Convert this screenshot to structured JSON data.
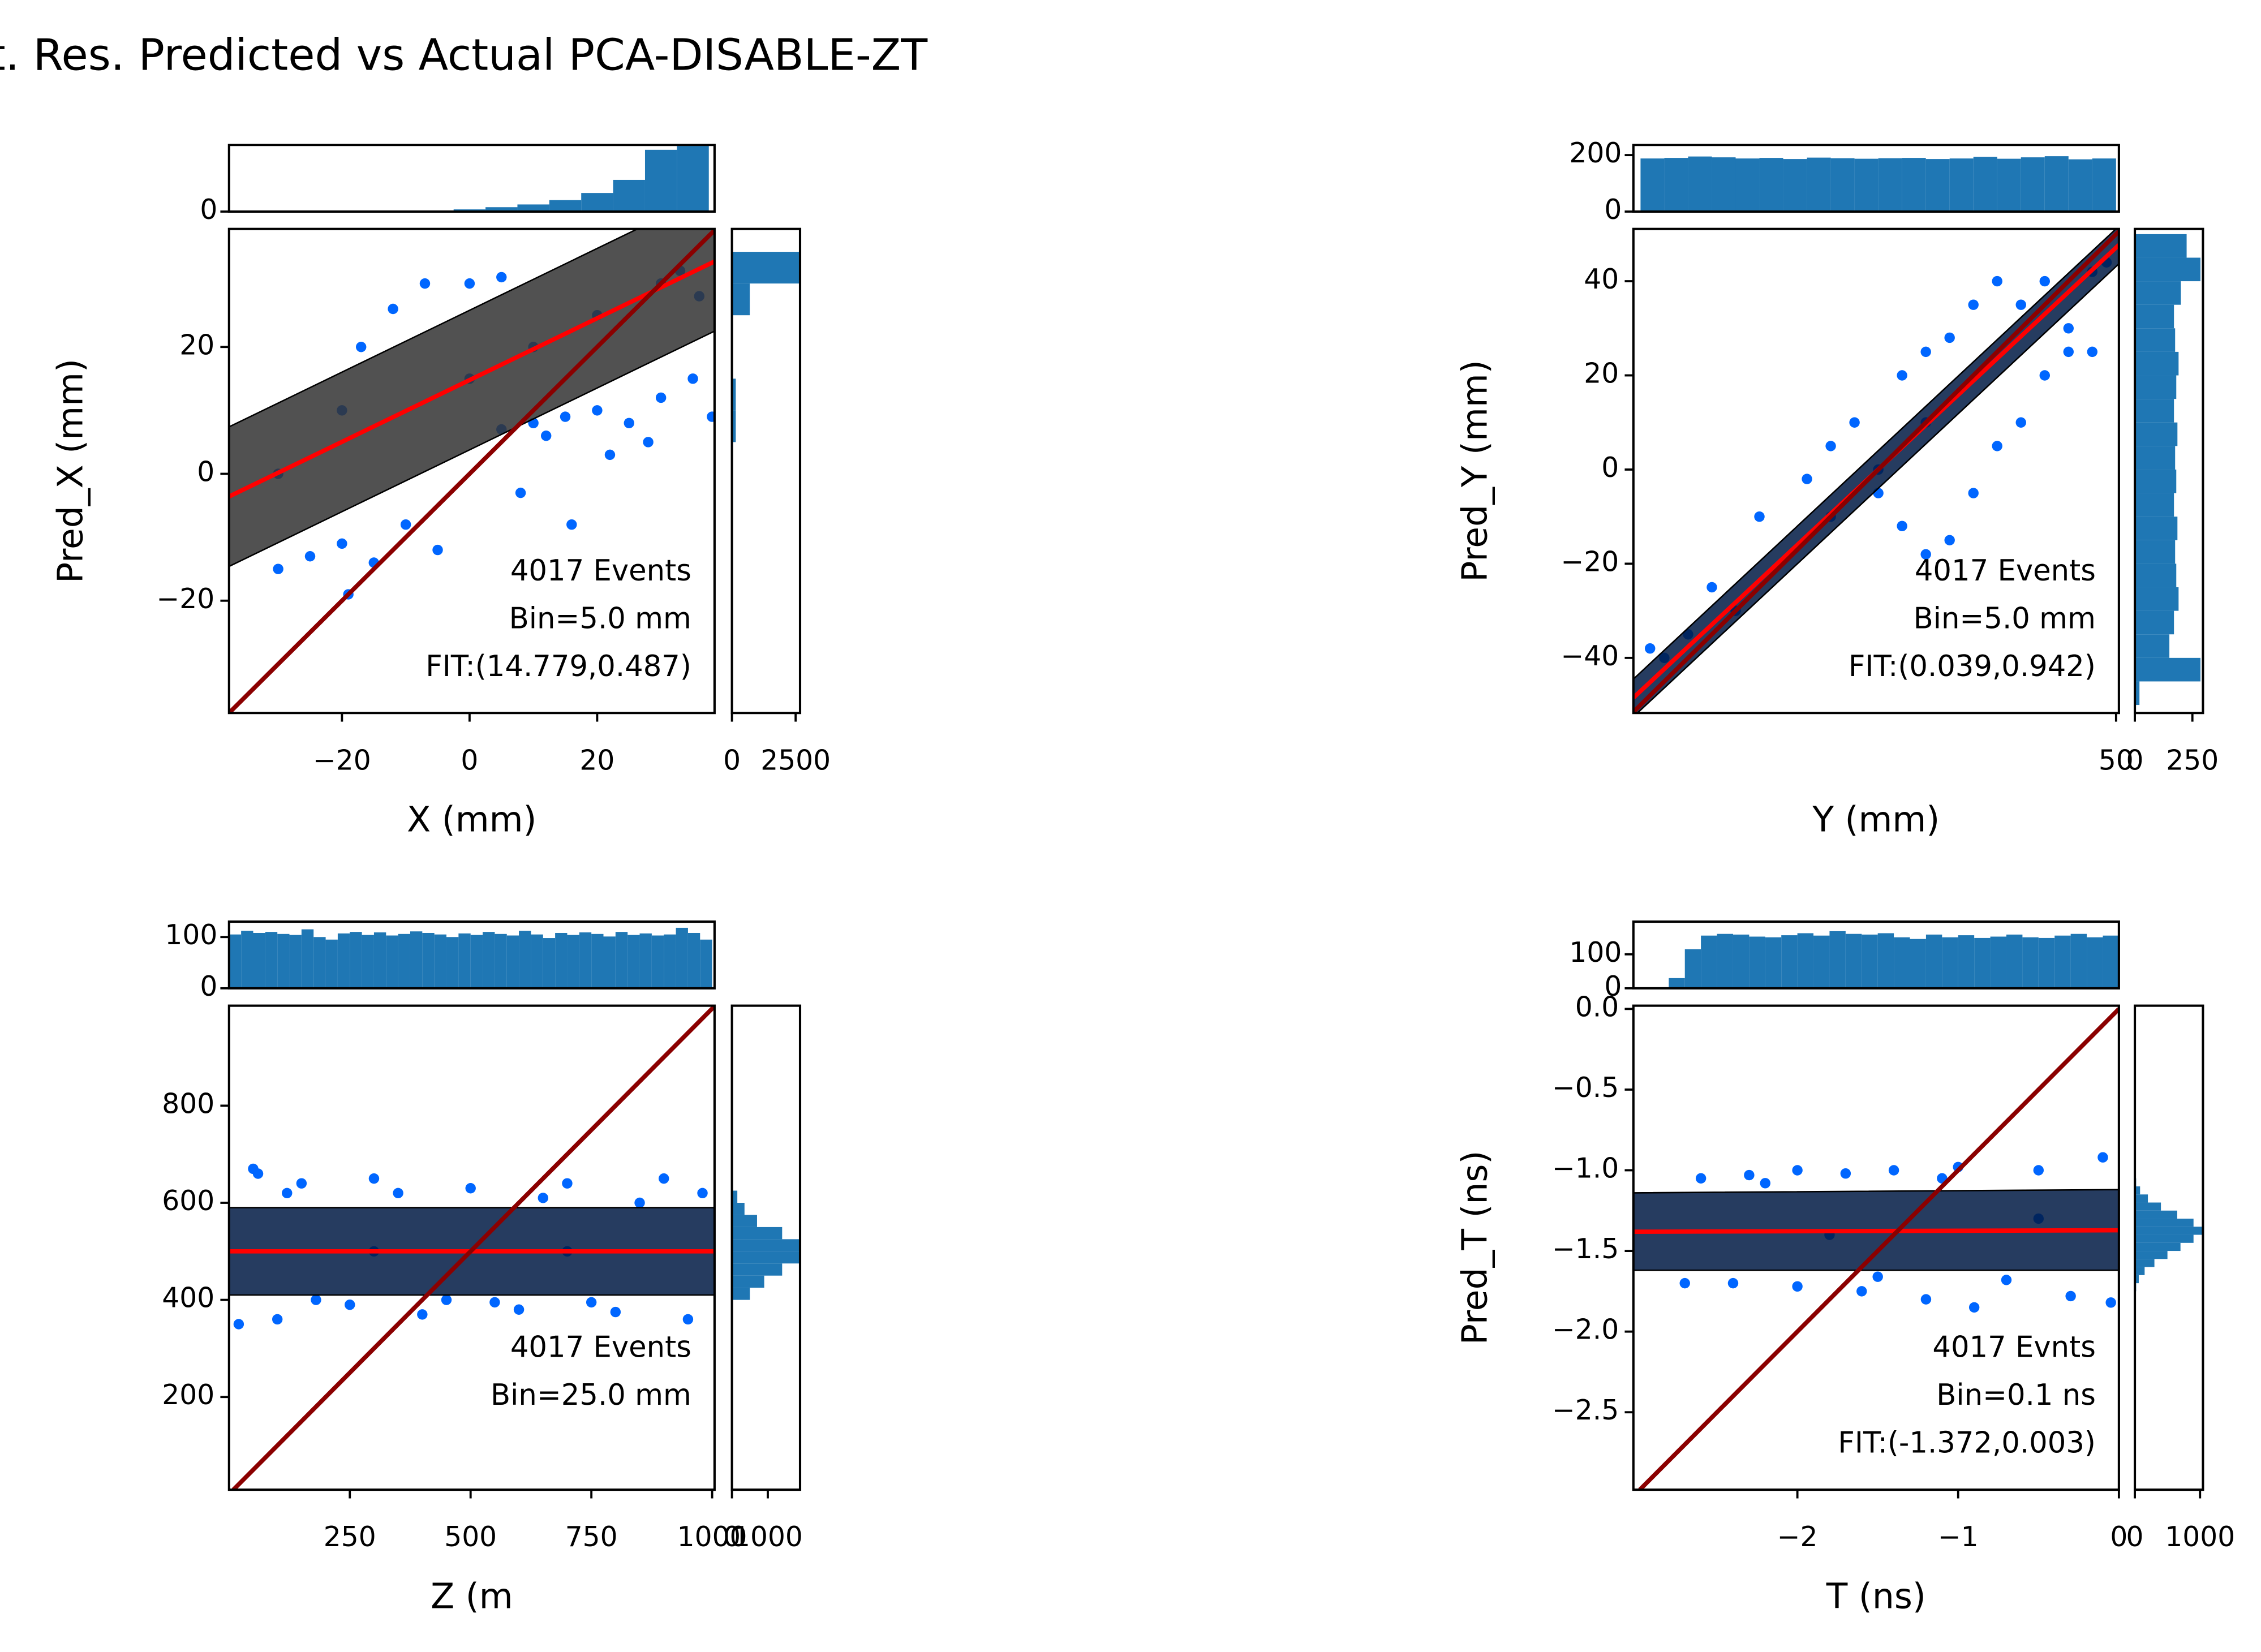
{
  "title": "t. Res. Predicted vs Actual PCA-DISABLE-ZT",
  "chart_data": [
    {
      "type": "scatter",
      "xlabel": "X (mm)",
      "ylabel": "Pred_X (mm)",
      "color": "#0066ff",
      "band_color": "#333333",
      "fit_color": "#ff0000",
      "diagonal_color": "#8b0000",
      "xlim": [
        -37.7,
        38.4
      ],
      "ylim": [
        -37.7,
        38.6
      ],
      "xticks": [
        {
          "value": -20,
          "label": "−20"
        },
        0,
        20
      ],
      "yticks": [
        {
          "value": -20,
          "label": "−20"
        },
        0,
        20
      ],
      "x": [
        10,
        15,
        20,
        25,
        30,
        35,
        38,
        28,
        22,
        12,
        5,
        -5,
        -10,
        -20,
        -25,
        -30,
        -15,
        8,
        16,
        -19,
        -7,
        0,
        5,
        -12,
        -17,
        -20,
        0,
        20,
        30,
        10,
        -30,
        33,
        36
      ],
      "values": [
        8,
        9,
        10,
        8,
        12,
        15,
        9,
        5,
        3,
        6,
        7,
        -12,
        -8,
        -11,
        -13,
        -15,
        -14,
        -3,
        -8,
        -19,
        30,
        30,
        31,
        26,
        20,
        10,
        15,
        25,
        30,
        20,
        0,
        32,
        28
      ],
      "band": {
        "x": [
          -37.7,
          38.4
        ],
        "lower": [
          -14.6,
          22.5
        ],
        "upper": [
          7.4,
          44.5
        ]
      },
      "fit_line": {
        "x": [
          -37.7,
          38.4
        ],
        "values": [
          -3.58,
          33.48
        ]
      },
      "annotations": [
        "4017 Events",
        "Bin=5.0 mm",
        "FIT:(14.779,0.487)"
      ],
      "top_hist": {
        "bins": [
          -37.5,
          -32.5,
          -27.5,
          -22.5,
          -17.5,
          -12.5,
          -7.5,
          -2.5,
          2.5,
          7.5,
          12.5,
          17.5,
          22.5,
          27.5,
          32.5,
          37.5
        ],
        "counts": [
          0,
          0,
          0,
          0,
          0,
          0,
          0.2,
          0.4,
          0.8,
          1.3,
          2.1,
          3.4,
          5.8,
          11.3,
          12
        ],
        "ylim": [
          0,
          12.2
        ],
        "yticks": [
          0
        ]
      },
      "right_hist": {
        "bins": [
          0,
          5,
          10,
          15,
          20,
          25,
          30,
          35
        ],
        "counts": [
          20,
          150,
          150,
          10,
          5,
          700,
          2650
        ],
        "xlim": [
          0,
          2674
        ],
        "xticks": [
          0,
          2500
        ]
      }
    },
    {
      "type": "scatter",
      "xlabel": "Y (mm)",
      "ylabel": "Pred_Y (mm)",
      "color": "#0066ff",
      "band_color": "#001a44",
      "fit_color": "#ff0000",
      "diagonal_color": "#8b0000",
      "xlim": [
        -51.5,
        50.6
      ],
      "ylim": [
        -51.7,
        51.1
      ],
      "xticks": [
        50
      ],
      "yticks": [
        {
          "value": -40,
          "label": "−40"
        },
        {
          "value": -20,
          "label": "−20"
        },
        0,
        20,
        40
      ],
      "x": [
        -40,
        -35,
        -25,
        -15,
        -10,
        -5,
        5,
        10,
        15,
        20,
        25,
        30,
        35,
        40,
        45,
        0,
        5,
        10,
        15,
        20,
        25,
        30,
        35,
        40,
        -45,
        -30,
        -10,
        0,
        10,
        45,
        -48,
        48
      ],
      "values": [
        -35,
        -25,
        -10,
        -2,
        5,
        10,
        20,
        25,
        28,
        35,
        40,
        35,
        40,
        25,
        25,
        -5,
        -12,
        -18,
        -15,
        -5,
        5,
        10,
        20,
        30,
        -40,
        -30,
        -10,
        0,
        10,
        42,
        -38,
        44
      ],
      "band": {
        "x": [
          -51.5,
          50.6
        ],
        "lower": [
          -52.5,
          43.7
        ],
        "upper": [
          -44.5,
          51.7
        ]
      },
      "fit_line": {
        "x": [
          -51.5,
          50.6
        ],
        "values": [
          -48.47,
          47.7
        ]
      },
      "annotations": [
        "4017 Events",
        "Bin=5.0 mm",
        "FIT:(0.039,0.942)"
      ],
      "top_hist": {
        "bins": [
          -50,
          -45,
          -40,
          -35,
          -30,
          -25,
          -20,
          -15,
          -10,
          -5,
          0,
          5,
          10,
          15,
          20,
          25,
          30,
          35,
          40,
          45,
          50
        ],
        "counts": [
          188,
          190,
          195,
          192,
          188,
          190,
          186,
          191,
          189,
          187,
          189,
          190,
          186,
          188,
          194,
          187,
          192,
          196,
          185,
          188
        ],
        "ylim": [
          0,
          236
        ],
        "yticks": [
          0,
          200
        ]
      },
      "right_hist": {
        "bins": [
          -50,
          -45,
          -40,
          -35,
          -30,
          -25,
          -20,
          -15,
          -10,
          -5,
          0,
          5,
          10,
          15,
          20,
          25,
          30,
          35,
          40,
          45,
          50
        ],
        "counts": [
          20,
          285,
          150,
          170,
          190,
          180,
          175,
          185,
          170,
          180,
          175,
          185,
          170,
          180,
          190,
          175,
          170,
          200,
          285,
          225
        ],
        "xlim": [
          0,
          296
        ],
        "xticks": [
          0,
          250
        ]
      }
    },
    {
      "type": "scatter",
      "xlabel": "Z (m",
      "color": "#0066ff",
      "band_color": "#001a44",
      "fit_color": "#ff0000",
      "diagonal_color": "#8b0000",
      "xlim": [
        0,
        1005
      ],
      "ylim": [
        9,
        1006
      ],
      "xticks": [
        250,
        500,
        750,
        1000
      ],
      "yticks": [
        200,
        400,
        600,
        800
      ],
      "x": [
        50,
        60,
        150,
        300,
        500,
        700,
        900,
        100,
        250,
        400,
        600,
        800,
        950,
        20,
        350,
        650,
        850,
        180,
        450,
        750,
        980,
        120,
        550,
        300,
        700
      ],
      "values": [
        670,
        660,
        640,
        650,
        630,
        640,
        650,
        360,
        390,
        370,
        380,
        375,
        360,
        350,
        620,
        610,
        600,
        400,
        400,
        395,
        620,
        620,
        395,
        500,
        500
      ],
      "band": {
        "x": [
          0,
          1005
        ],
        "lower": [
          410,
          410
        ],
        "upper": [
          590,
          590
        ]
      },
      "fit_line": {
        "x": [
          0,
          1005
        ],
        "values": [
          500,
          500
        ]
      },
      "annotations": [
        "4017 Events",
        "Bin=25.0 mm"
      ],
      "top_hist": {
        "bins": [
          0,
          25,
          50,
          75,
          100,
          125,
          150,
          175,
          200,
          225,
          250,
          275,
          300,
          325,
          350,
          375,
          400,
          425,
          450,
          475,
          500,
          525,
          550,
          575,
          600,
          625,
          650,
          675,
          700,
          725,
          750,
          775,
          800,
          825,
          850,
          875,
          900,
          925,
          950,
          975,
          1000
        ],
        "counts": [
          105,
          112,
          108,
          110,
          106,
          104,
          115,
          100,
          95,
          107,
          110,
          104,
          109,
          103,
          106,
          111,
          108,
          105,
          100,
          107,
          104,
          110,
          106,
          103,
          112,
          105,
          98,
          108,
          104,
          109,
          106,
          101,
          110,
          104,
          107,
          103,
          105,
          118,
          108,
          95
        ],
        "ylim": [
          0,
          130
        ],
        "yticks": [
          0,
          100
        ]
      },
      "right_hist": {
        "bins": [
          400,
          425,
          450,
          475,
          500,
          525,
          550,
          575,
          600,
          625
        ],
        "counts": [
          500,
          900,
          1400,
          1900,
          1900,
          1400,
          700,
          350,
          150
        ],
        "xlim": [
          0,
          1900
        ],
        "xticks": [
          0,
          1000
        ]
      }
    },
    {
      "type": "scatter",
      "xlabel": "T (ns)",
      "ylabel": "Pred_T (ns)",
      "color": "#0066ff",
      "band_color": "#001a44",
      "fit_color": "#ff0000",
      "diagonal_color": "#8b0000",
      "xlim": [
        -3.02,
        0
      ],
      "ylim": [
        -2.98,
        0.02
      ],
      "xticks": [
        {
          "value": -2,
          "label": "−2"
        },
        {
          "value": -1,
          "label": "−1"
        },
        0
      ],
      "yticks": [
        {
          "value": 0,
          "label": "0.0"
        },
        {
          "value": -0.5,
          "label": "−0.5"
        },
        {
          "value": -1,
          "label": "−1.0"
        },
        {
          "value": -1.5,
          "label": "−1.5"
        },
        {
          "value": -2,
          "label": "−2.0"
        },
        {
          "value": -2.5,
          "label": "−2.5"
        }
      ],
      "x": [
        -2.6,
        -2.3,
        -2.0,
        -1.7,
        -1.4,
        -1.0,
        -0.5,
        -0.1,
        -2.7,
        -2.4,
        -2.0,
        -1.6,
        -1.2,
        -0.9,
        -0.3,
        -0.05,
        -1.5,
        -0.7,
        -2.2,
        -1.1,
        -1.8,
        -0.5
      ],
      "values": [
        -1.05,
        -1.03,
        -1.0,
        -1.02,
        -1.0,
        -0.98,
        -1.0,
        -0.92,
        -1.7,
        -1.7,
        -1.72,
        -1.75,
        -1.8,
        -1.85,
        -1.78,
        -1.82,
        -1.66,
        -1.68,
        -1.08,
        -1.05,
        -1.4,
        -1.3
      ],
      "band": {
        "x": [
          -3.02,
          0
        ],
        "lower": [
          -1.62,
          -1.62
        ],
        "upper": [
          -1.14,
          -1.12
        ]
      },
      "fit_line": {
        "x": [
          -3.02,
          0
        ],
        "values": [
          -1.381,
          -1.372
        ]
      },
      "annotations": [
        "4017 Evnts",
        "Bin=0.1 ns",
        "FIT:(-1.372,0.003)"
      ],
      "top_hist": {
        "bins": [
          -2.8,
          -2.7,
          -2.6,
          -2.5,
          -2.4,
          -2.3,
          -2.2,
          -2.1,
          -2.0,
          -1.9,
          -1.8,
          -1.7,
          -1.6,
          -1.5,
          -1.4,
          -1.3,
          -1.2,
          -1.1,
          -1.0,
          -0.9,
          -0.8,
          -0.7,
          -0.6,
          -0.5,
          -0.4,
          -0.3,
          -0.2,
          -0.1,
          0
        ],
        "counts": [
          30,
          115,
          155,
          160,
          158,
          152,
          150,
          156,
          162,
          155,
          168,
          160,
          158,
          162,
          150,
          145,
          158,
          150,
          156,
          148,
          152,
          158,
          150,
          148,
          155,
          160,
          150,
          155
        ],
        "ylim": [
          0,
          196
        ],
        "yticks": [
          0,
          100
        ]
      },
      "right_hist": {
        "bins": [
          -1.8,
          -1.75,
          -1.7,
          -1.65,
          -1.6,
          -1.55,
          -1.5,
          -1.45,
          -1.4,
          -1.35,
          -1.3,
          -1.25,
          -1.2,
          -1.15,
          -1.1,
          -1.05,
          -1.0
        ],
        "counts": [
          5,
          20,
          60,
          150,
          300,
          500,
          700,
          900,
          1045,
          900,
          650,
          400,
          200,
          80,
          20,
          5
        ],
        "xlim": [
          0,
          1045
        ],
        "xticks": [
          0,
          1000
        ]
      }
    }
  ]
}
